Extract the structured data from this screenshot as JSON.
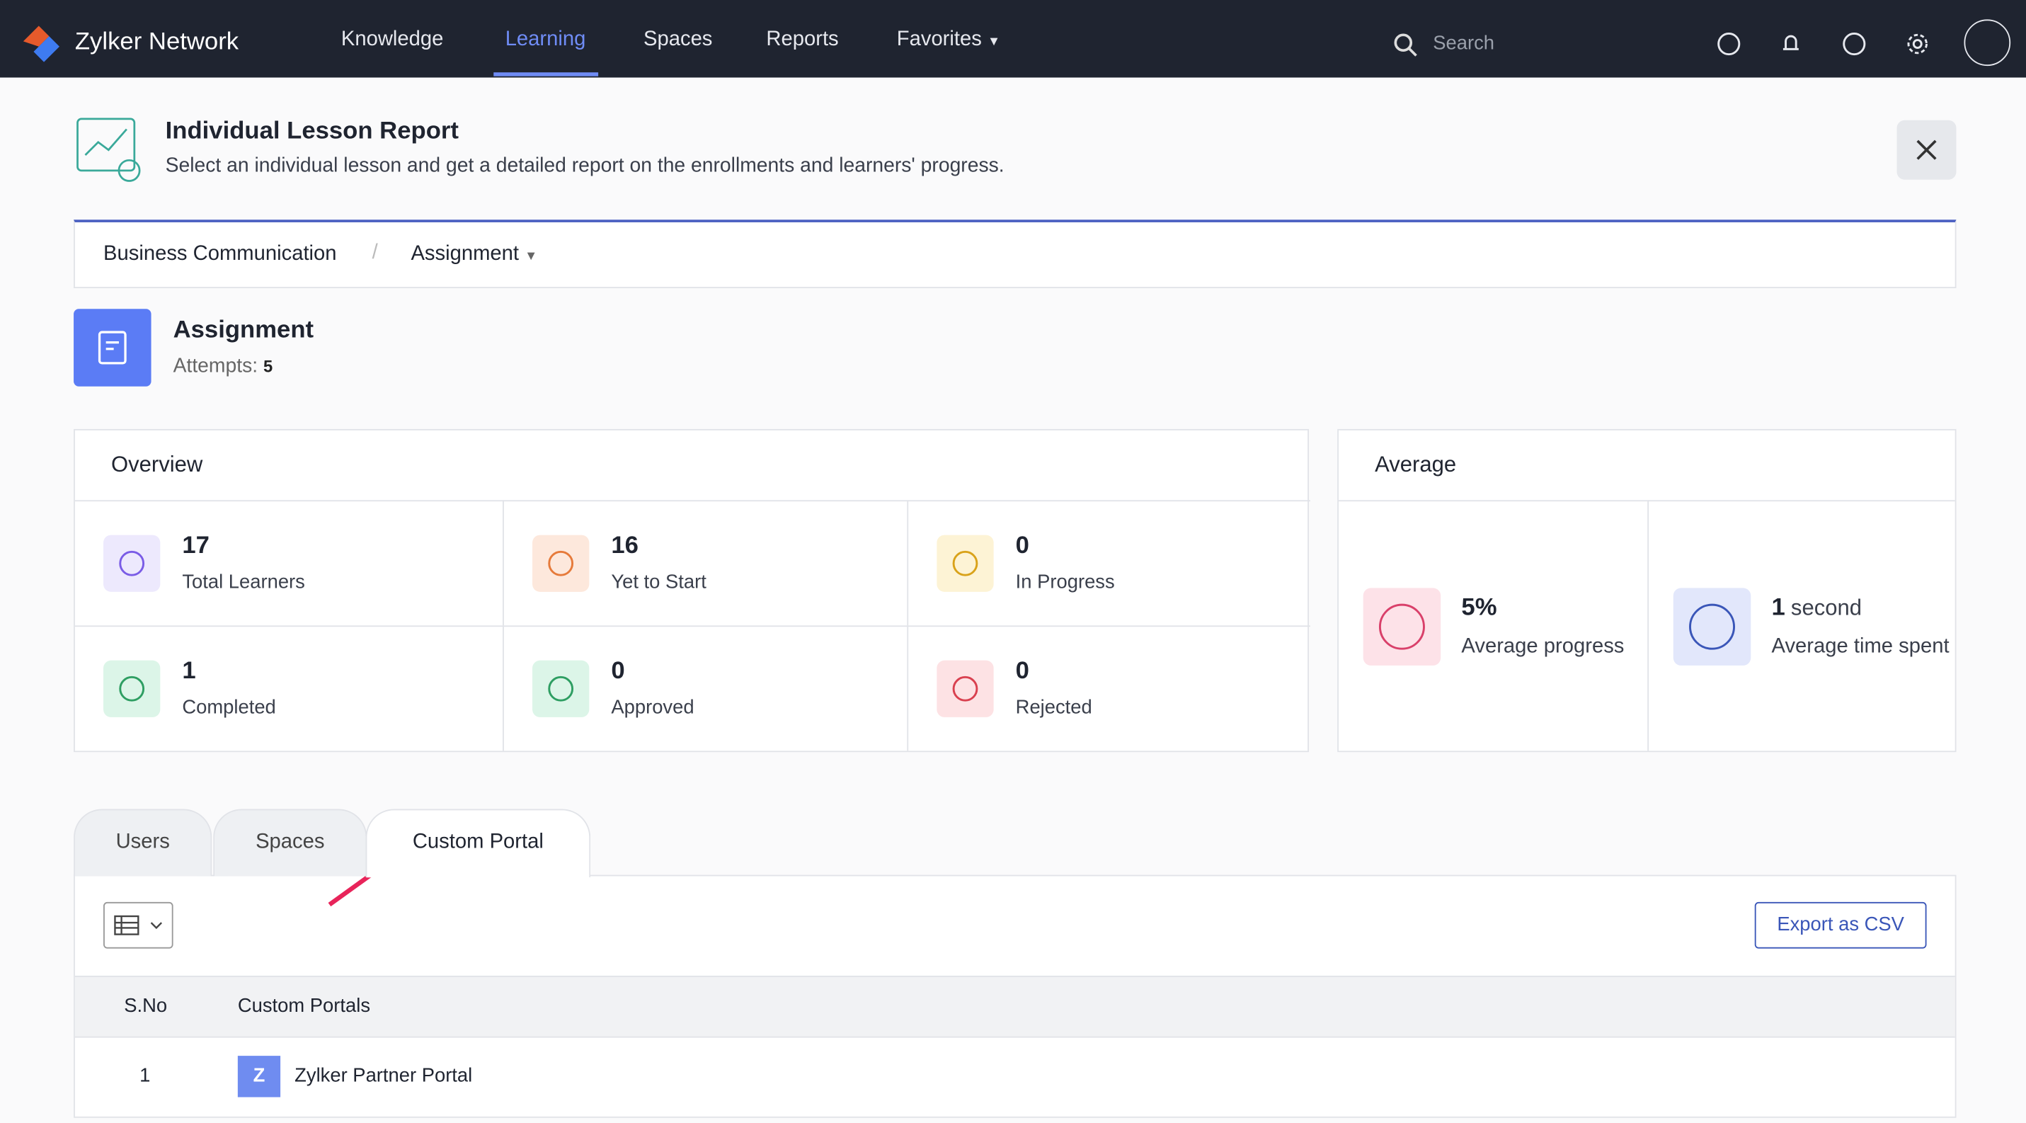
{
  "nav": {
    "brand": "Zylker Network",
    "menu": [
      "Knowledge",
      "Learning",
      "Spaces",
      "Reports",
      "Favorites"
    ],
    "active": 1,
    "search_placeholder": "Search"
  },
  "header": {
    "title": "Individual Lesson Report",
    "subtitle": "Select an individual lesson and get a detailed report on the enrollments and learners' progress."
  },
  "breadcrumb": [
    "Business Communication",
    "Assignment"
  ],
  "lesson": {
    "title": "Assignment",
    "attempts_label": "Attempts:",
    "attempts": 5
  },
  "overview": {
    "title": "Overview",
    "stats": [
      {
        "value": 17,
        "label": "Total Learners"
      },
      {
        "value": 16,
        "label": "Yet to Start"
      },
      {
        "value": 0,
        "label": "In Progress"
      },
      {
        "value": 1,
        "label": "Completed"
      },
      {
        "value": 0,
        "label": "Approved"
      },
      {
        "value": 0,
        "label": "Rejected"
      }
    ]
  },
  "average": {
    "title": "Average",
    "stats": [
      {
        "value": "5%",
        "label": "Average progress"
      },
      {
        "value": 1,
        "unit": "second",
        "label": "Average time spent"
      }
    ]
  },
  "tabs": [
    "Users",
    "Spaces",
    "Custom Portal"
  ],
  "active_tab": 2,
  "export": "Export as CSV",
  "table": {
    "columns": [
      "S.No",
      "Custom Portals"
    ],
    "rows": [
      {
        "sno": 1,
        "initial": "Z",
        "name": "Zylker Partner Portal"
      }
    ]
  }
}
